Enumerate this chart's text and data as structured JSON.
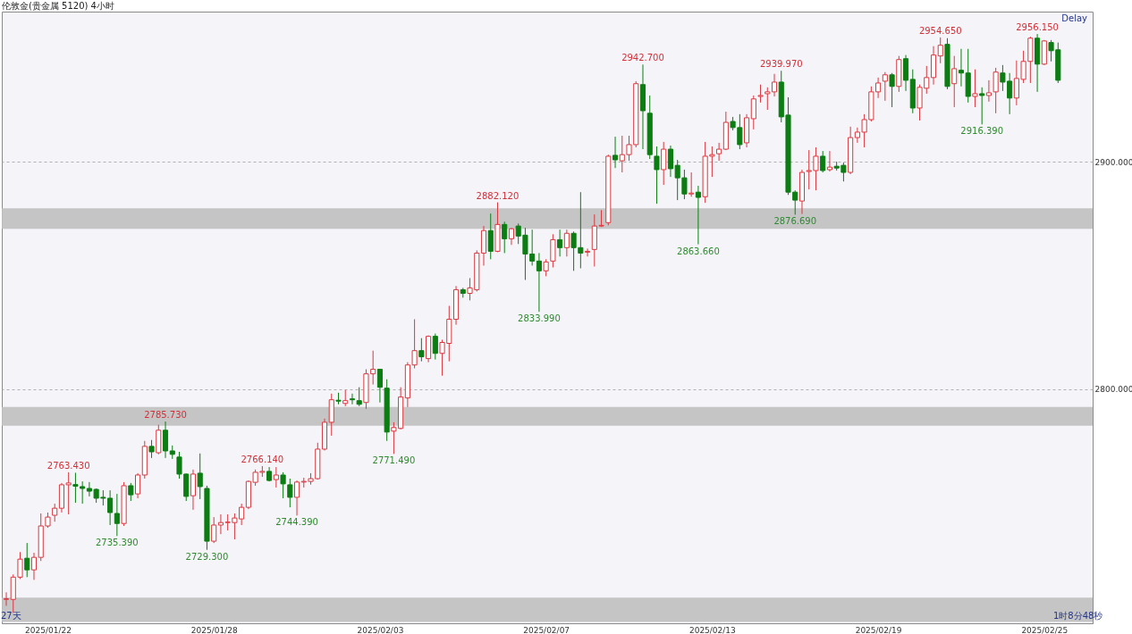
{
  "chart_data": {
    "type": "candlestick",
    "title": "伦敦金(贵金属 5120)  4小时",
    "categories": [
      null,
      null,
      null,
      null,
      null,
      null,
      "2025/01/22",
      null,
      null,
      null,
      null,
      null,
      null,
      null,
      null,
      null,
      null,
      null,
      null,
      null,
      null,
      null,
      null,
      null,
      null,
      null,
      null,
      null,
      null,
      null,
      "2025/01/28",
      null,
      null,
      null,
      null,
      null,
      null,
      null,
      null,
      null,
      null,
      null,
      null,
      null,
      null,
      null,
      null,
      null,
      null,
      null,
      null,
      null,
      null,
      null,
      "2025/02/03",
      null,
      null,
      null,
      null,
      null,
      null,
      null,
      null,
      null,
      null,
      null,
      null,
      null,
      null,
      null,
      null,
      null,
      null,
      null,
      null,
      null,
      null,
      null,
      "2025/02/07",
      null,
      null,
      null,
      null,
      null,
      null,
      null,
      null,
      null,
      null,
      null,
      null,
      null,
      null,
      null,
      null,
      null,
      null,
      null,
      null,
      null,
      null,
      null,
      "2025/02/13",
      null,
      null,
      null,
      null,
      null,
      null,
      null,
      null,
      null,
      null,
      null,
      null,
      null,
      null,
      null,
      null,
      null,
      null,
      null,
      null,
      null,
      null,
      null,
      "2025/02/19",
      null,
      null,
      null,
      null,
      null,
      null,
      null,
      null,
      null,
      null,
      null,
      null,
      null,
      null,
      null,
      null,
      null,
      null,
      null,
      null,
      null,
      null,
      null,
      "2025/02/25",
      null,
      null
    ],
    "ohlc": [
      [
        2707.5,
        2710.6,
        2704.7,
        2707.8
      ],
      [
        2707.5,
        2718.5,
        2701.6,
        2717.3
      ],
      [
        2717.3,
        2728.3,
        2716.5,
        2725.2
      ],
      [
        2725.6,
        2732.3,
        2717.3,
        2720.5
      ],
      [
        2720.5,
        2728.0,
        2716.1,
        2726.0
      ],
      [
        2726.0,
        2745.3,
        2724.4,
        2739.8
      ],
      [
        2739.8,
        2745.7,
        2739.0,
        2743.7
      ],
      [
        2744.5,
        2749.6,
        2741.7,
        2747.6
      ],
      [
        2747.6,
        2758.7,
        2745.7,
        2757.9
      ],
      [
        2757.9,
        2763.43,
        2744.9,
        2758.7
      ],
      [
        2758.0,
        2763.2,
        2750.0,
        2757.3
      ],
      [
        2757.1,
        2759.4,
        2749.6,
        2756.3
      ],
      [
        2756.3,
        2759.1,
        2752.8,
        2755.1
      ],
      [
        2755.9,
        2756.3,
        2750.0,
        2752.0
      ],
      [
        2752.4,
        2755.5,
        2748.8,
        2752.0
      ],
      [
        2752.0,
        2755.5,
        2740.2,
        2745.7
      ],
      [
        2745.3,
        2753.9,
        2735.39,
        2740.9
      ],
      [
        2740.9,
        2759.1,
        2739.8,
        2757.5
      ],
      [
        2757.5,
        2758.7,
        2750.8,
        2753.5
      ],
      [
        2753.9,
        2763.0,
        2752.0,
        2762.2
      ],
      [
        2762.2,
        2777.2,
        2760.6,
        2774.8
      ],
      [
        2774.8,
        2777.6,
        2769.7,
        2772.4
      ],
      [
        2772.0,
        2784.3,
        2771.3,
        2781.9
      ],
      [
        2781.9,
        2785.73,
        2769.7,
        2772.8
      ],
      [
        2772.8,
        2775.2,
        2769.3,
        2771.3
      ],
      [
        2770.1,
        2772.4,
        2760.6,
        2762.6
      ],
      [
        2762.6,
        2762.9,
        2750.8,
        2752.8
      ],
      [
        2753.1,
        2764.6,
        2746.9,
        2762.6
      ],
      [
        2763.0,
        2771.7,
        2751.6,
        2757.1
      ],
      [
        2756.3,
        2757.5,
        2729.3,
        2733.1
      ],
      [
        2733.1,
        2743.7,
        2732.3,
        2740.2
      ],
      [
        2740.2,
        2744.9,
        2736.2,
        2741.3
      ],
      [
        2741.3,
        2744.9,
        2737.8,
        2741.5
      ],
      [
        2741.3,
        2745.3,
        2733.9,
        2743.3
      ],
      [
        2742.9,
        2749.6,
        2740.2,
        2748.0
      ],
      [
        2748.0,
        2759.8,
        2747.2,
        2759.4
      ],
      [
        2759.0,
        2764.6,
        2757.5,
        2763.4
      ],
      [
        2763.4,
        2766.14,
        2761.4,
        2763.8
      ],
      [
        2763.8,
        2765.7,
        2759.4,
        2759.8
      ],
      [
        2760.2,
        2765.7,
        2756.7,
        2762.2
      ],
      [
        2762.2,
        2763.4,
        2752.0,
        2758.3
      ],
      [
        2757.9,
        2760.6,
        2748.0,
        2752.4
      ],
      [
        2752.4,
        2759.8,
        2744.39,
        2759.1
      ],
      [
        2759.1,
        2761.0,
        2756.7,
        2759.4
      ],
      [
        2759.4,
        2763.0,
        2758.0,
        2760.6
      ],
      [
        2760.6,
        2776.4,
        2760.2,
        2773.6
      ],
      [
        2773.6,
        2787.0,
        2773.0,
        2785.4
      ],
      [
        2785.4,
        2798.0,
        2779.5,
        2795.3
      ],
      [
        2795.1,
        2798.4,
        2793.3,
        2794.7
      ],
      [
        2793.7,
        2799.6,
        2792.5,
        2794.9
      ],
      [
        2795.7,
        2798.0,
        2793.3,
        2795.3
      ],
      [
        2794.9,
        2800.8,
        2792.5,
        2793.3
      ],
      [
        2794.1,
        2808.7,
        2791.3,
        2806.7
      ],
      [
        2806.7,
        2816.9,
        2802.0,
        2808.7
      ],
      [
        2808.7,
        2808.9,
        2794.1,
        2800.8
      ],
      [
        2800.4,
        2804.3,
        2777.2,
        2781.1
      ],
      [
        2781.5,
        2785.4,
        2771.49,
        2783.1
      ],
      [
        2782.7,
        2800.8,
        2782.3,
        2796.5
      ],
      [
        2796.1,
        2811.8,
        2792.1,
        2810.6
      ],
      [
        2810.6,
        2830.7,
        2809.1,
        2816.9
      ],
      [
        2816.9,
        2822.4,
        2812.2,
        2814.2
      ],
      [
        2813.4,
        2823.6,
        2811.8,
        2823.2
      ],
      [
        2823.2,
        2824.4,
        2813.0,
        2815.7
      ],
      [
        2815.7,
        2821.7,
        2805.9,
        2820.5
      ],
      [
        2820.1,
        2836.6,
        2812.2,
        2830.7
      ],
      [
        2830.7,
        2845.3,
        2828.3,
        2843.7
      ],
      [
        2843.7,
        2844.5,
        2840.2,
        2842.1
      ],
      [
        2842.1,
        2848.8,
        2839.0,
        2844.5
      ],
      [
        2843.7,
        2861.0,
        2842.9,
        2859.8
      ],
      [
        2859.8,
        2871.7,
        2854.3,
        2869.7
      ],
      [
        2869.7,
        2877.2,
        2857.1,
        2860.6
      ],
      [
        2860.6,
        2882.12,
        2860.2,
        2872.4
      ],
      [
        2872.4,
        2873.6,
        2859.8,
        2866.1
      ],
      [
        2866.1,
        2870.9,
        2863.4,
        2870.5
      ],
      [
        2871.7,
        2872.8,
        2863.8,
        2867.3
      ],
      [
        2867.7,
        2870.9,
        2848.0,
        2859.4
      ],
      [
        2859.4,
        2870.1,
        2854.3,
        2856.3
      ],
      [
        2856.3,
        2859.8,
        2833.99,
        2852.0
      ],
      [
        2852.0,
        2857.1,
        2849.6,
        2855.9
      ],
      [
        2856.3,
        2868.1,
        2853.5,
        2865.7
      ],
      [
        2865.7,
        2870.1,
        2858.3,
        2862.2
      ],
      [
        2862.2,
        2870.1,
        2858.3,
        2868.5
      ],
      [
        2868.5,
        2869.3,
        2852.0,
        2862.2
      ],
      [
        2862.2,
        2886.6,
        2853.1,
        2859.8
      ],
      [
        2860.2,
        2861.8,
        2858.3,
        2860.6
      ],
      [
        2861.4,
        2876.8,
        2853.9,
        2871.7
      ],
      [
        2871.7,
        2878.7,
        2871.3,
        2872.0
      ],
      [
        2873.2,
        2903.1,
        2872.0,
        2902.4
      ],
      [
        2902.8,
        2911.0,
        2897.2,
        2900.8
      ],
      [
        2900.4,
        2911.4,
        2895.3,
        2903.1
      ],
      [
        2903.1,
        2911.4,
        2900.4,
        2907.5
      ],
      [
        2907.5,
        2935.4,
        2906.3,
        2934.3
      ],
      [
        2933.9,
        2942.7,
        2905.5,
        2922.4
      ],
      [
        2921.3,
        2929.1,
        2901.2,
        2903.1
      ],
      [
        2902.4,
        2906.7,
        2881.5,
        2896.5
      ],
      [
        2896.5,
        2908.7,
        2889.8,
        2905.5
      ],
      [
        2905.5,
        2907.1,
        2893.3,
        2896.9
      ],
      [
        2898.4,
        2900.8,
        2883.1,
        2892.9
      ],
      [
        2892.9,
        2896.5,
        2883.5,
        2885.8
      ],
      [
        2885.8,
        2895.3,
        2884.6,
        2886.2
      ],
      [
        2886.6,
        2889.4,
        2863.66,
        2884.3
      ],
      [
        2884.6,
        2908.7,
        2881.9,
        2902.4
      ],
      [
        2902.4,
        2906.7,
        2893.3,
        2903.1
      ],
      [
        2903.5,
        2908.3,
        2900.4,
        2905.5
      ],
      [
        2905.5,
        2922.0,
        2905.1,
        2917.3
      ],
      [
        2917.7,
        2919.7,
        2913.8,
        2915.0
      ],
      [
        2915.0,
        2920.9,
        2905.5,
        2907.5
      ],
      [
        2908.3,
        2920.9,
        2906.3,
        2919.3
      ],
      [
        2918.9,
        2929.1,
        2914.2,
        2927.6
      ],
      [
        2928.7,
        2933.9,
        2926.0,
        2929.1
      ],
      [
        2929.9,
        2932.7,
        2922.8,
        2930.7
      ],
      [
        2930.7,
        2938.6,
        2928.7,
        2935.0
      ],
      [
        2935.0,
        2939.97,
        2917.3,
        2919.7
      ],
      [
        2920.5,
        2928.3,
        2885.4,
        2886.6
      ],
      [
        2886.6,
        2887.4,
        2876.69,
        2883.1
      ],
      [
        2882.7,
        2896.5,
        2877.0,
        2895.3
      ],
      [
        2895.7,
        2905.1,
        2887.8,
        2896.1
      ],
      [
        2896.1,
        2906.3,
        2887.4,
        2902.4
      ],
      [
        2902.4,
        2904.7,
        2895.3,
        2896.1
      ],
      [
        2896.5,
        2904.7,
        2895.7,
        2897.6
      ],
      [
        2898.0,
        2900.0,
        2896.1,
        2897.2
      ],
      [
        2898.4,
        2899.6,
        2891.3,
        2895.3
      ],
      [
        2895.3,
        2915.4,
        2894.5,
        2910.6
      ],
      [
        2910.6,
        2915.0,
        2908.3,
        2913.0
      ],
      [
        2913.0,
        2920.9,
        2906.3,
        2918.5
      ],
      [
        2918.5,
        2933.1,
        2917.7,
        2930.7
      ],
      [
        2930.7,
        2937.0,
        2928.0,
        2934.6
      ],
      [
        2935.4,
        2939.4,
        2926.8,
        2938.2
      ],
      [
        2938.2,
        2939.0,
        2924.0,
        2933.1
      ],
      [
        2933.1,
        2946.5,
        2930.7,
        2944.9
      ],
      [
        2945.3,
        2946.9,
        2931.1,
        2935.8
      ],
      [
        2936.2,
        2940.6,
        2921.3,
        2923.6
      ],
      [
        2923.6,
        2933.9,
        2918.1,
        2932.7
      ],
      [
        2932.3,
        2942.1,
        2929.9,
        2937.0
      ],
      [
        2937.0,
        2950.8,
        2933.9,
        2946.9
      ],
      [
        2946.5,
        2954.65,
        2943.3,
        2951.2
      ],
      [
        2951.6,
        2954.3,
        2931.9,
        2933.1
      ],
      [
        2934.3,
        2946.5,
        2924.0,
        2940.9
      ],
      [
        2940.2,
        2949.6,
        2933.1,
        2939.0
      ],
      [
        2939.0,
        2949.6,
        2926.0,
        2928.7
      ],
      [
        2928.7,
        2940.6,
        2924.0,
        2929.9
      ],
      [
        2929.9,
        2932.7,
        2916.39,
        2929.1
      ],
      [
        2929.1,
        2935.8,
        2926.4,
        2930.3
      ],
      [
        2930.7,
        2941.3,
        2921.3,
        2939.4
      ],
      [
        2939.0,
        2942.5,
        2931.1,
        2935.0
      ],
      [
        2935.4,
        2939.0,
        2920.9,
        2928.0
      ],
      [
        2928.0,
        2944.5,
        2924.8,
        2936.6
      ],
      [
        2936.2,
        2948.8,
        2934.6,
        2944.1
      ],
      [
        2944.1,
        2955.0,
        2934.6,
        2954.3
      ],
      [
        2954.3,
        2956.15,
        2930.7,
        2942.9
      ],
      [
        2942.9,
        2953.5,
        2942.5,
        2953.1
      ],
      [
        2952.4,
        2953.5,
        2944.1,
        2948.8
      ],
      [
        2949.2,
        2952.4,
        2934.6,
        2935.8
      ]
    ],
    "ylim": [
      2697,
      2966
    ],
    "yticks": [
      {
        "value": 2800,
        "label": "2800.000"
      },
      {
        "value": 2900,
        "label": "2900.000"
      }
    ],
    "grid": "y",
    "bands": [
      {
        "axis": "y",
        "from": 2870.5,
        "to": 2879.5,
        "color": "#c0c0c0"
      },
      {
        "axis": "y",
        "from": 2783.9,
        "to": 2792.1,
        "color": "#c0c0c0"
      },
      {
        "axis": "y",
        "from": 2697.6,
        "to": 2708.3,
        "color": "#c0c0c0"
      }
    ],
    "annotations": [
      {
        "text": "2763.430",
        "y": 2763.43
      },
      {
        "text": "2735.390",
        "y": 2735.39
      },
      {
        "text": "2785.730",
        "y": 2785.73
      },
      {
        "text": "2729.300",
        "y": 2729.3
      },
      {
        "text": "2766.140",
        "y": 2766.14
      },
      {
        "text": "2744.390",
        "y": 2744.39
      },
      {
        "text": "2771.490",
        "y": 2771.49
      },
      {
        "text": "2882.120",
        "y": 2882.12
      },
      {
        "text": "2833.990",
        "y": 2833.99
      },
      {
        "text": "2942.700",
        "y": 2942.7
      },
      {
        "text": "2863.660",
        "y": 2863.66
      },
      {
        "text": "2939.970",
        "y": 2939.97
      },
      {
        "text": "2876.690",
        "y": 2876.69
      },
      {
        "text": "2954.650",
        "y": 2954.65
      },
      {
        "text": "2916.390",
        "y": 2916.39
      },
      {
        "text": "2956.150",
        "y": 2956.15
      },
      "Delay",
      "27天",
      "1时8分48秒"
    ]
  }
}
